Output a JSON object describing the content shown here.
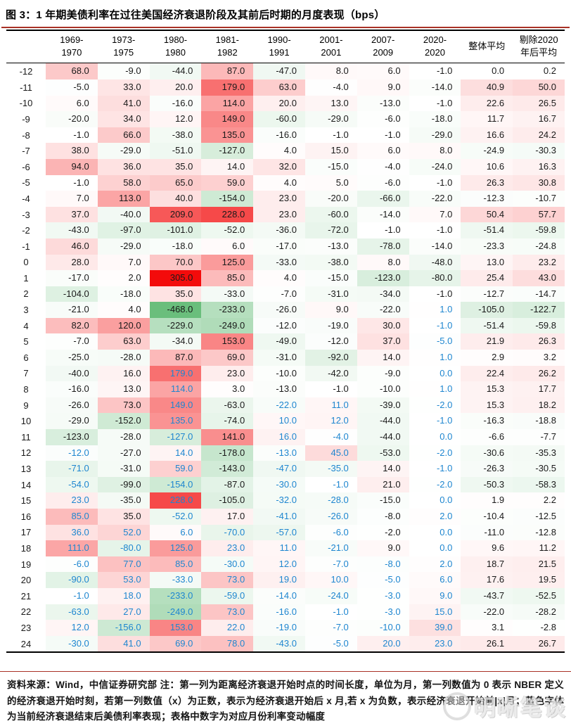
{
  "title": "图 3：1 年期美债利率在过往美国经济衰退阶段及其前后时期的月度表现（bps）",
  "chart_data": {
    "type": "heatmap",
    "title": "1 年期美债利率在过往美国经济衰退阶段及其前后时期的月度表现（bps）",
    "row_axis_meaning": "距离经济衰退开始时点的时间长度（月）",
    "value_unit": "bps",
    "columns": [
      {
        "label": "1969-\n1970",
        "blue_from": 12
      },
      {
        "label": "1973-\n1975",
        "blue_from": 17
      },
      {
        "label": "1980-\n1980",
        "blue_from": 7
      },
      {
        "label": "1981-\n1982",
        "blue_from": 17
      },
      {
        "label": "1990-\n1991",
        "blue_from": 9
      },
      {
        "label": "2001-\n2001",
        "blue_from": 9
      },
      {
        "label": "2007-\n2009",
        "blue_from": 19
      },
      {
        "label": "2020-\n2020",
        "blue_from": 3
      },
      {
        "label": "整体平均",
        "blue_from": null
      },
      {
        "label": "剔除2020\n年后平均",
        "blue_from": null
      }
    ],
    "months": [
      -12,
      -11,
      -10,
      -9,
      -8,
      -7,
      -6,
      -5,
      -4,
      -3,
      -2,
      -1,
      0,
      1,
      2,
      3,
      4,
      5,
      6,
      7,
      8,
      9,
      10,
      11,
      12,
      13,
      14,
      15,
      16,
      17,
      18,
      19,
      20,
      21,
      22,
      23,
      24
    ],
    "rows": [
      [
        68.0,
        -9.0,
        -44.0,
        87.0,
        -47.0,
        8.0,
        6.0,
        -1.0,
        0.0,
        0.2
      ],
      [
        -5.0,
        33.0,
        20.0,
        179.0,
        63.0,
        -4.0,
        9.0,
        -14.0,
        40.9,
        50.0
      ],
      [
        6.0,
        41.0,
        -16.0,
        114.0,
        20.0,
        13.0,
        -13.0,
        -1.0,
        22.6,
        26.5
      ],
      [
        -20.0,
        34.0,
        12.0,
        149.0,
        -60.0,
        -29.0,
        -6.0,
        -18.0,
        11.7,
        16.7
      ],
      [
        -1.0,
        66.0,
        -38.0,
        135.0,
        -16.0,
        -1.0,
        -1.0,
        -29.0,
        16.6,
        24.2
      ],
      [
        38.0,
        -29.0,
        -51.0,
        -127.0,
        4.0,
        15.0,
        6.0,
        8.0,
        -24.9,
        -30.3
      ],
      [
        94.0,
        36.0,
        35.0,
        14.0,
        32.0,
        -15.0,
        -4.0,
        -24.0,
        10.6,
        16.3
      ],
      [
        -1.0,
        58.0,
        65.0,
        59.0,
        4.0,
        5.0,
        -6.0,
        -1.0,
        26.3,
        30.8
      ],
      [
        7.0,
        113.0,
        40.0,
        -154.0,
        23.0,
        -20.0,
        -66.0,
        -22.0,
        -12.3,
        -10.7
      ],
      [
        37.0,
        -40.0,
        209.0,
        228.0,
        23.0,
        -60.0,
        -14.0,
        7.0,
        50.4,
        57.7
      ],
      [
        -43.0,
        -97.0,
        -101.0,
        -52.0,
        -36.0,
        -72.0,
        -1.0,
        -1.0,
        -51.4,
        -59.8
      ],
      [
        46.0,
        -29.0,
        -18.0,
        6.0,
        -17.0,
        -13.0,
        -78.0,
        -14.0,
        -23.3,
        -24.8
      ],
      [
        28.0,
        7.0,
        70.0,
        125.0,
        -33.0,
        -38.0,
        8.0,
        -48.0,
        13.0,
        23.2
      ],
      [
        -17.0,
        2.0,
        305.0,
        85.0,
        4.0,
        -15.0,
        -123.0,
        -80.0,
        25.4,
        43.0
      ],
      [
        -104.0,
        -18.0,
        35.0,
        -33.0,
        -7.0,
        -31.0,
        -34.0,
        -1.0,
        -12.7,
        -14.7
      ],
      [
        -21.0,
        4.0,
        -468.0,
        -233.0,
        -26.0,
        9.0,
        -22.0,
        1.0,
        -105.0,
        -122.7
      ],
      [
        82.0,
        120.0,
        -229.0,
        -249.0,
        -12.0,
        -19.0,
        30.0,
        -1.0,
        -51.4,
        -59.8
      ],
      [
        -7.0,
        63.0,
        -34.0,
        153.0,
        -49.0,
        -12.0,
        37.0,
        -5.0,
        21.9,
        26.3
      ],
      [
        -25.0,
        -28.0,
        87.0,
        69.0,
        -31.0,
        -92.0,
        14.0,
        1.0,
        2.9,
        3.2
      ],
      [
        -40.0,
        16.0,
        179.0,
        23.0,
        -10.0,
        -42.0,
        -9.0,
        0.0,
        22.4,
        26.2
      ],
      [
        -16.0,
        13.0,
        114.0,
        3.0,
        -13.0,
        -1.0,
        -10.0,
        1.0,
        15.3,
        17.7
      ],
      [
        -26.0,
        73.0,
        149.0,
        -63.0,
        -22.0,
        11.0,
        -39.0,
        -2.0,
        15.3,
        18.2
      ],
      [
        -29.0,
        -152.0,
        135.0,
        -74.0,
        10.0,
        12.0,
        -44.0,
        -1.0,
        -16.3,
        -18.8
      ],
      [
        -123.0,
        -28.0,
        -127.0,
        141.0,
        16.0,
        -4.0,
        -44.0,
        0.0,
        -6.6,
        -7.7
      ],
      [
        -12.0,
        -27.0,
        14.0,
        -178.0,
        -13.0,
        45.0,
        -53.0,
        -2.0,
        -30.6,
        -35.3
      ],
      [
        -71.0,
        -31.0,
        59.0,
        -143.0,
        -47.0,
        -35.0,
        14.0,
        -1.0,
        -26.3,
        -30.5
      ],
      [
        -54.0,
        -99.0,
        -154.0,
        -87.0,
        -30.0,
        -1.0,
        21.0,
        -2.0,
        -50.3,
        -58.3
      ],
      [
        23.0,
        -35.0,
        228.0,
        -105.0,
        -32.0,
        -28.0,
        -15.0,
        0.0,
        1.9,
        2.2
      ],
      [
        85.0,
        35.0,
        -52.0,
        17.0,
        -41.0,
        -26.0,
        -8.0,
        2.0,
        -10.4,
        -12.5
      ],
      [
        36.0,
        52.0,
        6.0,
        -70.0,
        -57.0,
        -6.0,
        -2.0,
        0.0,
        -11.0,
        -12.8
      ],
      [
        111.0,
        -80.0,
        125.0,
        23.0,
        11.0,
        -21.0,
        9.0,
        0.0,
        9.6,
        11.2
      ],
      [
        -6.0,
        77.0,
        85.0,
        -30.0,
        12.0,
        -7.0,
        -8.0,
        2.0,
        18.7,
        21.5
      ],
      [
        -90.0,
        53.0,
        -33.0,
        73.0,
        19.0,
        10.0,
        -5.0,
        6.0,
        17.6,
        19.5
      ],
      [
        -1.0,
        18.0,
        -233.0,
        -59.0,
        -14.0,
        -24.0,
        -3.0,
        9.0,
        -43.7,
        -52.5
      ],
      [
        -63.0,
        27.0,
        -249.0,
        73.0,
        -16.0,
        -1.0,
        -3.0,
        15.0,
        -22.0,
        -28.2
      ],
      [
        12.0,
        -156.0,
        153.0,
        22.0,
        -19.0,
        -7.0,
        -10.0,
        39.0,
        3.1,
        -2.8
      ],
      [
        -30.0,
        41.0,
        69.0,
        78.0,
        -43.0,
        -5.0,
        20.0,
        23.0,
        26.1,
        26.7
      ]
    ],
    "color_scale": {
      "zero_color": "#FFFFFF",
      "positive_color": "#F30B0B",
      "negative_color": "#6ABE7C",
      "max_value": 305,
      "min_value": -468
    },
    "blue_text_color": "#1E86D0",
    "black_text_color": "#1A1A1A"
  },
  "footer": {
    "note": "资料来源：Wind，中信证券研究部  注：第一列为距离经济衰退开始时点的时间长度，单位为月，第一列数值为 0 表示 NBER 定义的经济衰退开始时刻，若第一列数值（x）为正数，表示为经济衰退开始后 x 月,若 x 为负数，表示经济衰退开始前|x|月；蓝色字体为当前经济衰退结束后美债利率表现；表格中数字为对应月份利率变动幅度",
    "watermark": "明晰笔谈"
  },
  "colors": {
    "accent_rule": "#A93226",
    "table_border": "#000000"
  }
}
